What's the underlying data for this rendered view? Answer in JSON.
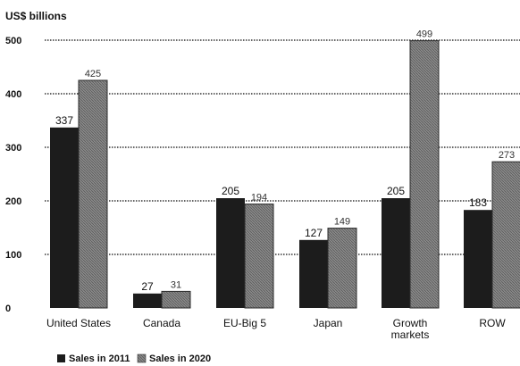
{
  "chart_data": {
    "type": "bar",
    "unit_label": "US$ billions",
    "categories": [
      "United States",
      "Canada",
      "EU-Big 5",
      "Japan",
      "Growth\nmarkets",
      "ROW"
    ],
    "series": [
      {
        "name": "Sales in 2011",
        "values": [
          337,
          27,
          205,
          127,
          205,
          183
        ],
        "color": "#1c1c1c"
      },
      {
        "name": "Sales in 2020",
        "values": [
          425,
          31,
          194,
          149,
          499,
          273
        ],
        "color": "#7d7d7d"
      }
    ],
    "ylim": [
      0,
      500
    ],
    "yticks": [
      0,
      100,
      200,
      300,
      400,
      500
    ],
    "grid": true,
    "legend": "bottom-left"
  }
}
